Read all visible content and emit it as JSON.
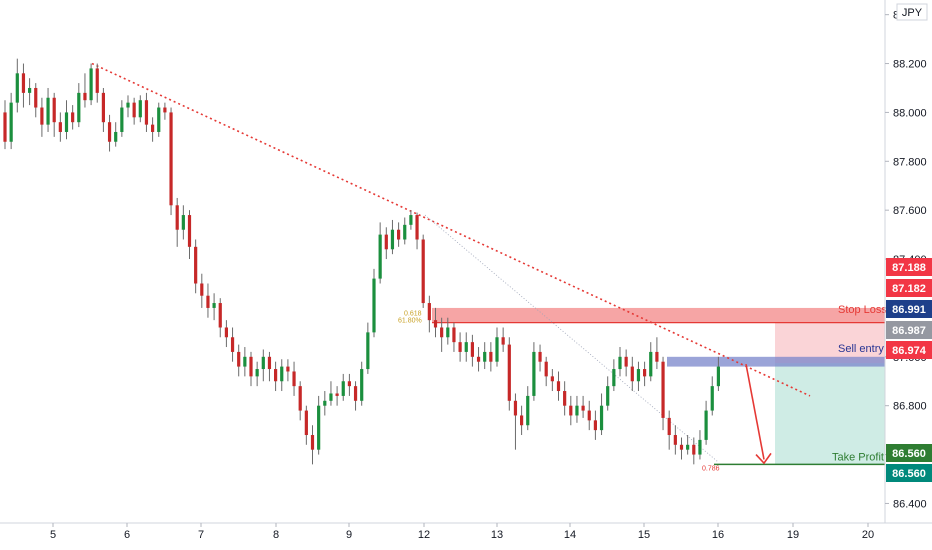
{
  "chart_data": {
    "type": "candlestick",
    "symbol": "JPY",
    "x_ticks": [
      "5",
      "6",
      "7",
      "8",
      "9",
      "12",
      "13",
      "14",
      "15",
      "16",
      "19",
      "20"
    ],
    "y_ticks": [
      86.4,
      86.6,
      86.8,
      87.0,
      87.2,
      87.4,
      87.6,
      87.8,
      88.0,
      88.2,
      88.4
    ],
    "y_tick_labels": [
      "86.400",
      "86.600",
      "86.800",
      "87.000",
      "87.200",
      "87.400",
      "87.600",
      "87.800",
      "88.000",
      "88.200",
      "88.400"
    ],
    "ylim": [
      86.32,
      88.46
    ],
    "grid": false,
    "candles": [
      [
        88.0,
        87.88,
        88.05,
        87.85
      ],
      [
        87.88,
        88.04,
        88.08,
        87.85
      ],
      [
        88.04,
        88.16,
        88.22,
        88.0
      ],
      [
        88.16,
        88.08,
        88.2,
        88.02
      ],
      [
        88.08,
        88.1,
        88.14,
        88.03
      ],
      [
        88.1,
        88.02,
        88.12,
        87.98
      ],
      [
        88.02,
        87.95,
        88.06,
        87.9
      ],
      [
        87.95,
        88.06,
        88.1,
        87.92
      ],
      [
        88.06,
        87.96,
        88.08,
        87.9
      ],
      [
        87.96,
        87.92,
        88.0,
        87.88
      ],
      [
        87.92,
        88.0,
        88.05,
        87.89
      ],
      [
        88.0,
        87.96,
        88.03,
        87.93
      ],
      [
        87.96,
        88.08,
        88.12,
        87.94
      ],
      [
        88.08,
        88.05,
        88.16,
        88.02
      ],
      [
        88.05,
        88.18,
        88.2,
        88.03
      ],
      [
        88.18,
        88.08,
        88.2,
        88.04
      ],
      [
        88.08,
        87.96,
        88.1,
        87.92
      ],
      [
        87.96,
        87.88,
        87.99,
        87.84
      ],
      [
        87.88,
        87.92,
        87.96,
        87.86
      ],
      [
        87.92,
        88.02,
        88.05,
        87.9
      ],
      [
        88.02,
        88.04,
        88.07,
        87.98
      ],
      [
        88.04,
        87.98,
        88.06,
        87.95
      ],
      [
        87.98,
        88.05,
        88.07,
        87.96
      ],
      [
        88.05,
        87.95,
        88.08,
        87.92
      ],
      [
        87.95,
        87.92,
        87.98,
        87.88
      ],
      [
        87.92,
        88.02,
        88.04,
        87.9
      ],
      [
        88.02,
        88.0,
        88.04,
        87.97
      ],
      [
        88.0,
        87.62,
        88.02,
        87.58
      ],
      [
        87.62,
        87.52,
        87.65,
        87.45
      ],
      [
        87.52,
        87.58,
        87.62,
        87.48
      ],
      [
        87.58,
        87.45,
        87.6,
        87.4
      ],
      [
        87.45,
        87.3,
        87.48,
        87.26
      ],
      [
        87.3,
        87.25,
        87.34,
        87.2
      ],
      [
        87.25,
        87.2,
        87.3,
        87.16
      ],
      [
        87.2,
        87.22,
        87.26,
        87.15
      ],
      [
        87.22,
        87.12,
        87.24,
        87.08
      ],
      [
        87.12,
        87.08,
        87.15,
        87.04
      ],
      [
        87.08,
        87.02,
        87.12,
        86.98
      ],
      [
        87.02,
        86.96,
        87.05,
        86.92
      ],
      [
        86.96,
        87.0,
        87.04,
        86.92
      ],
      [
        87.0,
        86.92,
        87.02,
        86.88
      ],
      [
        86.92,
        86.95,
        86.98,
        86.88
      ],
      [
        86.95,
        87.0,
        87.03,
        86.9
      ],
      [
        87.0,
        86.95,
        87.02,
        86.9
      ],
      [
        86.95,
        86.9,
        86.98,
        86.86
      ],
      [
        86.9,
        86.96,
        86.99,
        86.86
      ],
      [
        86.96,
        86.94,
        86.99,
        86.9
      ],
      [
        86.94,
        86.88,
        86.98,
        86.84
      ],
      [
        86.88,
        86.78,
        86.9,
        86.74
      ],
      [
        86.78,
        86.68,
        86.8,
        86.64
      ],
      [
        86.68,
        86.62,
        86.72,
        86.56
      ],
      [
        86.62,
        86.8,
        86.84,
        86.6
      ],
      [
        86.8,
        86.82,
        86.86,
        86.76
      ],
      [
        86.82,
        86.85,
        86.9,
        86.8
      ],
      [
        86.85,
        86.84,
        86.88,
        86.8
      ],
      [
        86.84,
        86.9,
        86.93,
        86.82
      ],
      [
        86.9,
        86.88,
        86.93,
        86.84
      ],
      [
        86.88,
        86.82,
        86.9,
        86.78
      ],
      [
        86.82,
        86.95,
        86.98,
        86.8
      ],
      [
        86.95,
        87.1,
        87.14,
        86.93
      ],
      [
        87.1,
        87.32,
        87.36,
        87.08
      ],
      [
        87.32,
        87.5,
        87.55,
        87.3
      ],
      [
        87.5,
        87.44,
        87.53,
        87.4
      ],
      [
        87.44,
        87.52,
        87.56,
        87.42
      ],
      [
        87.52,
        87.48,
        87.55,
        87.45
      ],
      [
        87.48,
        87.54,
        87.57,
        87.46
      ],
      [
        87.54,
        87.58,
        87.6,
        87.52
      ],
      [
        87.58,
        87.48,
        87.59,
        87.44
      ],
      [
        87.48,
        87.22,
        87.5,
        87.2
      ],
      [
        87.22,
        87.15,
        87.25,
        87.1
      ],
      [
        87.15,
        87.12,
        87.2,
        87.08
      ],
      [
        87.12,
        87.08,
        87.16,
        87.02
      ],
      [
        87.08,
        87.12,
        87.16,
        87.05
      ],
      [
        87.12,
        87.06,
        87.14,
        87.02
      ],
      [
        87.06,
        87.02,
        87.1,
        86.98
      ],
      [
        87.02,
        87.06,
        87.1,
        86.98
      ],
      [
        87.06,
        87.0,
        87.09,
        86.96
      ],
      [
        87.0,
        86.98,
        87.04,
        86.94
      ],
      [
        86.98,
        87.02,
        87.06,
        86.95
      ],
      [
        87.02,
        86.98,
        87.06,
        86.94
      ],
      [
        86.98,
        87.08,
        87.12,
        86.96
      ],
      [
        87.08,
        87.05,
        87.12,
        87.02
      ],
      [
        87.05,
        86.82,
        87.08,
        86.78
      ],
      [
        86.82,
        86.76,
        86.85,
        86.62
      ],
      [
        86.76,
        86.72,
        86.8,
        86.68
      ],
      [
        86.72,
        86.84,
        86.88,
        86.7
      ],
      [
        86.84,
        87.02,
        87.06,
        86.82
      ],
      [
        87.02,
        86.98,
        87.05,
        86.94
      ],
      [
        86.98,
        86.92,
        87.0,
        86.88
      ],
      [
        86.92,
        86.9,
        86.95,
        86.86
      ],
      [
        86.9,
        86.86,
        86.94,
        86.82
      ],
      [
        86.86,
        86.8,
        86.9,
        86.76
      ],
      [
        86.8,
        86.76,
        86.84,
        86.72
      ],
      [
        86.76,
        86.8,
        86.84,
        86.73
      ],
      [
        86.8,
        86.78,
        86.84,
        86.75
      ],
      [
        86.78,
        86.74,
        86.82,
        86.7
      ],
      [
        86.74,
        86.7,
        86.78,
        86.66
      ],
      [
        86.7,
        86.8,
        86.85,
        86.68
      ],
      [
        86.8,
        86.88,
        86.92,
        86.78
      ],
      [
        86.88,
        86.95,
        86.99,
        86.86
      ],
      [
        86.95,
        87.0,
        87.04,
        86.92
      ],
      [
        87.0,
        86.96,
        87.03,
        86.92
      ],
      [
        86.96,
        86.9,
        87.0,
        86.86
      ],
      [
        86.9,
        86.95,
        86.98,
        86.86
      ],
      [
        86.95,
        86.92,
        86.98,
        86.88
      ],
      [
        86.92,
        87.02,
        87.06,
        86.9
      ],
      [
        87.02,
        86.98,
        87.08,
        86.95
      ],
      [
        86.98,
        86.75,
        87.0,
        86.7
      ],
      [
        86.75,
        86.68,
        86.78,
        86.62
      ],
      [
        86.68,
        86.64,
        86.72,
        86.6
      ],
      [
        86.64,
        86.62,
        86.67,
        86.58
      ],
      [
        86.62,
        86.64,
        86.68,
        86.6
      ],
      [
        86.64,
        86.6,
        86.67,
        86.56
      ],
      [
        86.6,
        86.66,
        86.7,
        86.58
      ],
      [
        86.66,
        86.78,
        86.82,
        86.64
      ],
      [
        86.78,
        86.88,
        86.92,
        86.76
      ],
      [
        86.88,
        86.96,
        87.0,
        86.86
      ]
    ],
    "annotations": {
      "stop_loss": {
        "label": "Stop Loss",
        "zone": [
          87.14,
          87.2
        ]
      },
      "sell_entry": {
        "label": "Sell entry",
        "zone": [
          86.96,
          87.0
        ]
      },
      "take_profit": {
        "label": "Take Profit",
        "level": 86.56
      },
      "fib_labels": [
        "0.618",
        "61.80%",
        "0.786"
      ]
    },
    "price_tags": [
      {
        "text": "87.188",
        "value": 87.188,
        "color": "#f23645"
      },
      {
        "text": "87.182",
        "value": 87.182,
        "color": "#f23645"
      },
      {
        "text": "86.991",
        "value": 86.991,
        "color": "#1e3f8a"
      },
      {
        "text": "86.987",
        "value": 86.987,
        "color": "#9598a1"
      },
      {
        "text": "86.974",
        "value": 86.974,
        "color": "#f23645"
      },
      {
        "text": "86.560",
        "value": 86.56,
        "color": "#2e7d32"
      },
      {
        "text": "86.560",
        "value": 86.56,
        "color": "#00897b"
      }
    ],
    "colors": {
      "up": "#26a69a",
      "up_body": "#1b8f3e",
      "down": "#c62828",
      "trendline": "#e53935",
      "stop_zone": "#f48f8f",
      "entry_zone": "#7986cb",
      "tp_line": "#2e7d32",
      "risk_box": "#f8c6ca",
      "reward_box": "#bfe6dc"
    }
  }
}
